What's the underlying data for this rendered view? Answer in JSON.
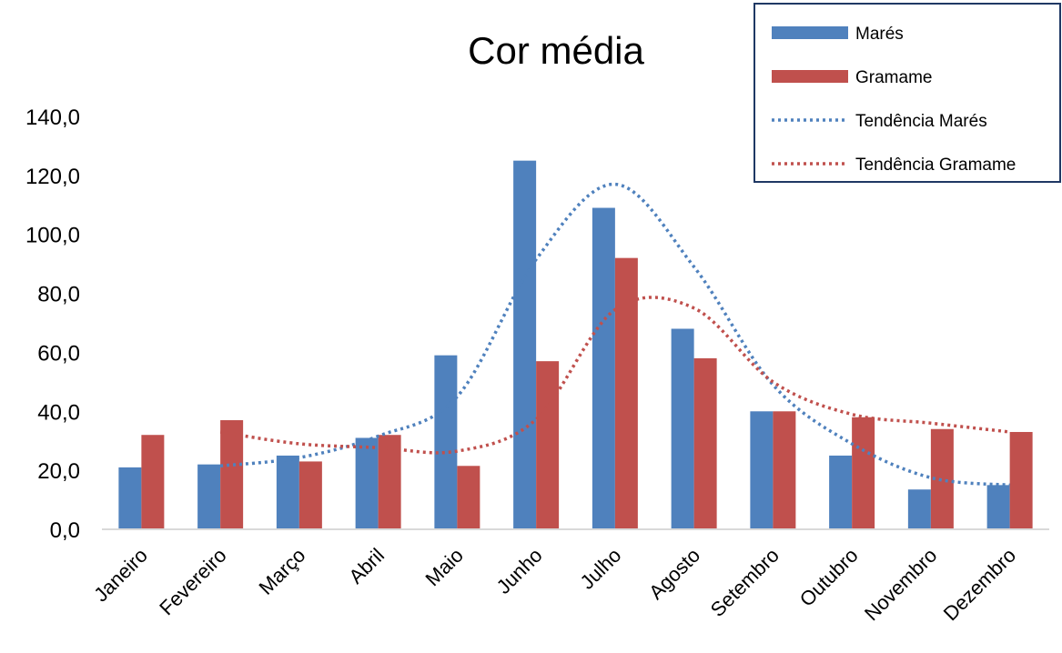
{
  "chart_data": {
    "type": "bar",
    "title": "Cor média",
    "xlabel": "",
    "ylabel": "",
    "ylim": [
      0,
      140
    ],
    "yticks": [
      "0,0",
      "20,0",
      "40,0",
      "60,0",
      "80,0",
      "100,0",
      "120,0",
      "140,0"
    ],
    "categories": [
      "Janeiro",
      "Fevereiro",
      "Março",
      "Abril",
      "Maio",
      "Junho",
      "Julho",
      "Agosto",
      "Setembro",
      "Outubro",
      "Novembro",
      "Dezembro"
    ],
    "series": [
      {
        "name": "Marés",
        "type": "bar",
        "color": "#4f81bd",
        "values": [
          21,
          22,
          25,
          31,
          59,
          125,
          109,
          68,
          40,
          25,
          13.5,
          15
        ]
      },
      {
        "name": "Gramame",
        "type": "bar",
        "color": "#c0504d",
        "values": [
          32,
          37,
          23,
          32,
          21.5,
          57,
          92,
          58,
          40,
          38,
          34,
          33
        ]
      }
    ],
    "trendlines": [
      {
        "name": "Tendência Marés",
        "color": "#4f81bd",
        "style": "dotted",
        "x": [
          "Fevereiro",
          "Março",
          "Abril",
          "Maio",
          "Junho",
          "Julho",
          "Agosto",
          "Setembro",
          "Outubro",
          "Novembro",
          "Dezembro"
        ],
        "values": [
          21.5,
          24.3,
          31.6,
          45,
          91.5,
          117,
          89,
          49,
          29,
          17.5,
          15
        ]
      },
      {
        "name": "Tendência Gramame",
        "color": "#c0504d",
        "style": "dotted",
        "x": [
          "Fevereiro",
          "Março",
          "Abril",
          "Maio",
          "Junho",
          "Julho",
          "Agosto",
          "Setembro",
          "Outubro",
          "Novembro",
          "Dezembro"
        ],
        "values": [
          33,
          29,
          27.7,
          26.5,
          37.3,
          74.5,
          75,
          50,
          39,
          36,
          33
        ]
      }
    ],
    "legend": "top-right",
    "grid": false
  }
}
